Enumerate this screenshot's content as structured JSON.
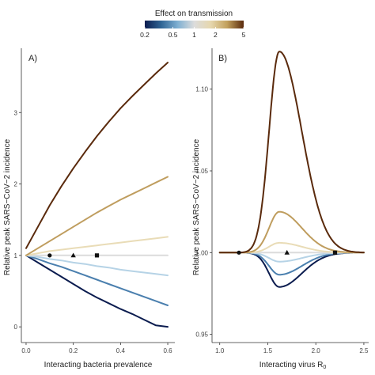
{
  "legend": {
    "title": "Effect on transmission",
    "ticks": [
      "0.2",
      "0.5",
      "1",
      "2",
      "5"
    ],
    "tick_values": [
      0.2,
      0.5,
      1,
      2,
      5
    ],
    "colors": [
      "#0b1c4f",
      "#2f6595",
      "#7fb0d2",
      "#dcdcdc",
      "#e6d7ae",
      "#c2a05c",
      "#5a2a0c"
    ]
  },
  "chart_data": [
    {
      "type": "line",
      "panel_label": "A)",
      "xlabel": "Interacting bacteria prevalence",
      "ylabel": "Relative peak SARS−CoV−2 incidence",
      "xlim": [
        -0.02,
        0.63
      ],
      "ylim": [
        -0.22,
        3.9
      ],
      "xticks": [
        0.0,
        0.2,
        0.4,
        0.6
      ],
      "xtick_labels": [
        "0.0",
        "0.2",
        "0.4",
        "0.6"
      ],
      "yticks": [
        0,
        1,
        2,
        3
      ],
      "ytick_labels": [
        "0",
        "1",
        "2",
        "3"
      ],
      "grid": false,
      "x": [
        0.0,
        0.05,
        0.1,
        0.15,
        0.2,
        0.25,
        0.3,
        0.35,
        0.4,
        0.45,
        0.5,
        0.55,
        0.6
      ],
      "series": [
        {
          "color": "#0b1c4f",
          "values": [
            1.0,
            0.9,
            0.8,
            0.7,
            0.6,
            0.5,
            0.41,
            0.33,
            0.25,
            0.18,
            0.1,
            0.02,
            0.0
          ]
        },
        {
          "color": "#4a7fae",
          "values": [
            1.0,
            0.95,
            0.89,
            0.84,
            0.78,
            0.72,
            0.66,
            0.6,
            0.54,
            0.48,
            0.42,
            0.36,
            0.3
          ]
        },
        {
          "color": "#b6d3e6",
          "values": [
            1.0,
            0.98,
            0.95,
            0.93,
            0.9,
            0.88,
            0.85,
            0.83,
            0.8,
            0.78,
            0.76,
            0.74,
            0.72
          ]
        },
        {
          "color": "#dcdcdc",
          "values": [
            1.0,
            1.0,
            1.0,
            1.0,
            1.0,
            1.0,
            1.0,
            1.0,
            1.0,
            1.0,
            1.0,
            1.0,
            1.0
          ]
        },
        {
          "color": "#e9dcb7",
          "values": [
            1.0,
            1.03,
            1.06,
            1.08,
            1.1,
            1.12,
            1.14,
            1.16,
            1.18,
            1.2,
            1.22,
            1.24,
            1.26
          ]
        },
        {
          "color": "#bf9d5e",
          "values": [
            1.0,
            1.1,
            1.2,
            1.3,
            1.4,
            1.5,
            1.6,
            1.69,
            1.78,
            1.86,
            1.94,
            2.02,
            2.1
          ]
        },
        {
          "color": "#5a2a0c",
          "values": [
            1.1,
            1.4,
            1.7,
            1.97,
            2.22,
            2.45,
            2.67,
            2.87,
            3.06,
            3.23,
            3.39,
            3.55,
            3.7
          ]
        }
      ],
      "markers": [
        {
          "shape": "circle",
          "x": 0.1,
          "y": 1.0
        },
        {
          "shape": "triangle",
          "x": 0.2,
          "y": 1.0
        },
        {
          "shape": "square",
          "x": 0.3,
          "y": 1.0
        }
      ]
    },
    {
      "type": "line",
      "panel_label": "B)",
      "xlabel": "Interacting virus R",
      "xlabel_sub": "0",
      "ylabel": "Relative peak SARS−CoV−2 incidence",
      "xlim": [
        0.92,
        2.55
      ],
      "ylim": [
        0.945,
        1.125
      ],
      "xticks": [
        1.0,
        1.5,
        2.0,
        2.5
      ],
      "xtick_labels": [
        "1.0",
        "1.5",
        "2.0",
        "2.5"
      ],
      "yticks": [
        0.95,
        1.0,
        1.05,
        1.1
      ],
      "ytick_labels": [
        "0.95",
        "1.00",
        "1.05",
        "1.10"
      ],
      "grid": false,
      "curve_shape": {
        "peak_x": 1.62,
        "width_left": 0.15,
        "width_right": 0.33
      },
      "series": [
        {
          "color": "#0b1c4f",
          "amplitude": -0.021
        },
        {
          "color": "#4a7fae",
          "amplitude": -0.0135
        },
        {
          "color": "#b6d3e6",
          "amplitude": -0.0055
        },
        {
          "color": "#dcdcdc",
          "amplitude": 0.0
        },
        {
          "color": "#e9dcb7",
          "amplitude": 0.006
        },
        {
          "color": "#bf9d5e",
          "amplitude": 0.025
        },
        {
          "color": "#5a2a0c",
          "amplitude": 0.123
        }
      ],
      "markers": [
        {
          "shape": "circle",
          "x": 1.2,
          "y": 1.0
        },
        {
          "shape": "triangle",
          "x": 1.7,
          "y": 1.0
        },
        {
          "shape": "square",
          "x": 2.2,
          "y": 1.0
        }
      ]
    }
  ]
}
